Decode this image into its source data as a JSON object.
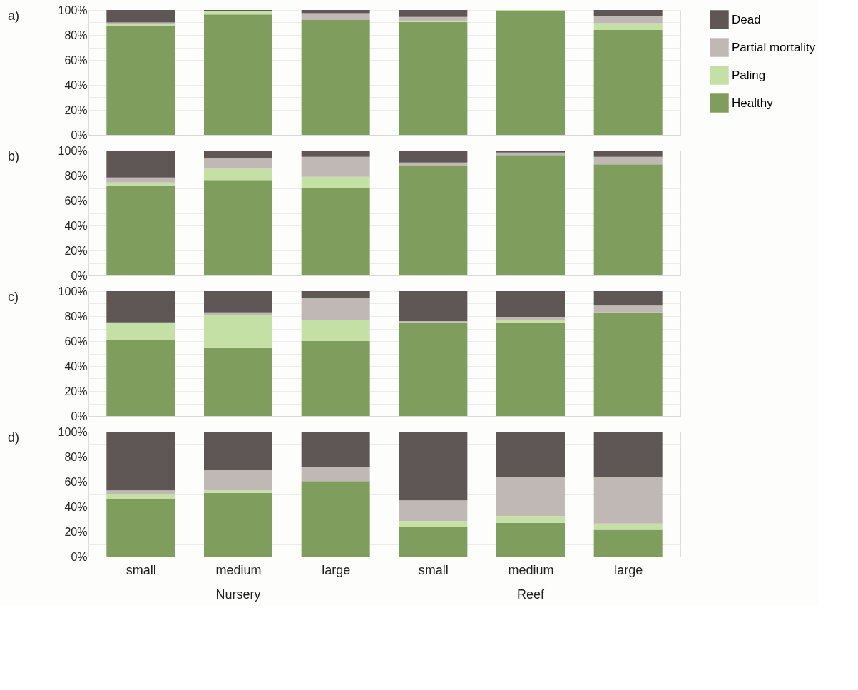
{
  "chart_data": [
    {
      "type": "bar",
      "title": "a)",
      "stacked": true,
      "categories": [
        null,
        null,
        null,
        null,
        null,
        null
      ],
      "ylim": [
        0,
        100
      ],
      "yticks": [
        {
          "value": 0,
          "label": "0%"
        },
        {
          "value": 10,
          "label": null
        },
        {
          "value": 20,
          "label": "20%"
        },
        {
          "value": 30,
          "label": null
        },
        {
          "value": 40,
          "label": "40%"
        },
        {
          "value": 50,
          "label": null
        },
        {
          "value": 60,
          "label": "60%"
        },
        {
          "value": 70,
          "label": null
        },
        {
          "value": 80,
          "label": "80%"
        },
        {
          "value": 90,
          "label": null
        },
        {
          "value": 100,
          "label": "100%"
        }
      ],
      "grid": "y",
      "legend": "right",
      "tick_labels": "y",
      "series": [
        {
          "name": "Healthy",
          "color": "#7f9d5c",
          "values": [
            87,
            96.5,
            92,
            90.5,
            99,
            84
          ]
        },
        {
          "name": "Paling",
          "color": "#c5e0a5",
          "values": [
            2,
            2.5,
            0,
            1,
            1,
            5.5
          ]
        },
        {
          "name": "Partial mortality",
          "color": "#c0b8b4",
          "values": [
            1,
            0,
            5.5,
            3,
            0,
            5.5
          ]
        },
        {
          "name": "Dead",
          "color": "#5f5755",
          "values": [
            10,
            1,
            2.5,
            5.5,
            0,
            5
          ]
        }
      ]
    },
    {
      "type": "bar",
      "title": "b)",
      "stacked": true,
      "categories": [
        null,
        null,
        null,
        null,
        null,
        null
      ],
      "ylim": [
        0,
        100
      ],
      "yticks": [
        {
          "value": 0,
          "label": "0%"
        },
        {
          "value": 10,
          "label": null
        },
        {
          "value": 20,
          "label": "20%"
        },
        {
          "value": 30,
          "label": null
        },
        {
          "value": 40,
          "label": "40%"
        },
        {
          "value": 50,
          "label": null
        },
        {
          "value": 60,
          "label": "60%"
        },
        {
          "value": 70,
          "label": null
        },
        {
          "value": 80,
          "label": "80%"
        },
        {
          "value": 90,
          "label": null
        },
        {
          "value": 100,
          "label": "100%"
        }
      ],
      "grid": "y",
      "tick_labels": "y",
      "series": [
        {
          "color": "#7f9d5c",
          "values": [
            71.5,
            76.5,
            70,
            87.5,
            96.5,
            89
          ]
        },
        {
          "color": "#c5e0a5",
          "values": [
            3,
            9,
            9,
            0,
            0,
            0
          ]
        },
        {
          "color": "#c0b8b4",
          "values": [
            4,
            8.5,
            16,
            3,
            2,
            6
          ]
        },
        {
          "color": "#5f5755",
          "values": [
            21.5,
            6,
            5,
            9.5,
            1.5,
            5
          ]
        }
      ]
    },
    {
      "type": "bar",
      "title": "c)",
      "stacked": true,
      "categories": [
        null,
        null,
        null,
        null,
        null,
        null
      ],
      "ylim": [
        0,
        100
      ],
      "yticks": [
        {
          "value": 0,
          "label": "0%"
        },
        {
          "value": 10,
          "label": null
        },
        {
          "value": 20,
          "label": "20%"
        },
        {
          "value": 30,
          "label": null
        },
        {
          "value": 40,
          "label": "40%"
        },
        {
          "value": 50,
          "label": null
        },
        {
          "value": 60,
          "label": "60%"
        },
        {
          "value": 70,
          "label": null
        },
        {
          "value": 80,
          "label": "80%"
        },
        {
          "value": 90,
          "label": null
        },
        {
          "value": 100,
          "label": "100%"
        }
      ],
      "grid": "y",
      "tick_labels": "y",
      "series": [
        {
          "color": "#7f9d5c",
          "values": [
            61,
            54.5,
            60,
            75,
            75,
            83
          ]
        },
        {
          "color": "#c5e0a5",
          "values": [
            14,
            26.5,
            17,
            0,
            2,
            0
          ]
        },
        {
          "color": "#c0b8b4",
          "values": [
            0,
            2,
            17.5,
            1,
            2.5,
            5.5
          ]
        },
        {
          "color": "#5f5755",
          "values": [
            25,
            17,
            5.5,
            24,
            20.5,
            11.5
          ]
        }
      ]
    },
    {
      "type": "bar",
      "title": "d)",
      "stacked": true,
      "categories": [
        "small",
        "medium",
        "large",
        "small",
        "medium",
        "large"
      ],
      "ylim": [
        0,
        100
      ],
      "yticks": [
        {
          "value": 0,
          "label": "0%"
        },
        {
          "value": 10,
          "label": null
        },
        {
          "value": 20,
          "label": "20%"
        },
        {
          "value": 30,
          "label": null
        },
        {
          "value": 40,
          "label": "40%"
        },
        {
          "value": 50,
          "label": null
        },
        {
          "value": 60,
          "label": "60%"
        },
        {
          "value": 70,
          "label": null
        },
        {
          "value": 80,
          "label": "80%"
        },
        {
          "value": 90,
          "label": null
        },
        {
          "value": 100,
          "label": "100%"
        }
      ],
      "grid": "y",
      "annotations": [
        "Nursery",
        "Reef"
      ],
      "series": [
        {
          "color": "#7f9d5c",
          "values": [
            46,
            51,
            60.5,
            24,
            27,
            21.5
          ]
        },
        {
          "color": "#c5e0a5",
          "values": [
            4,
            2,
            0,
            4.5,
            5.5,
            5
          ]
        },
        {
          "color": "#c0b8b4",
          "values": [
            3,
            16.5,
            11,
            16.5,
            31,
            37
          ]
        },
        {
          "color": "#5f5755",
          "values": [
            47,
            30.5,
            28.5,
            55,
            36.5,
            36.5
          ]
        }
      ]
    }
  ]
}
